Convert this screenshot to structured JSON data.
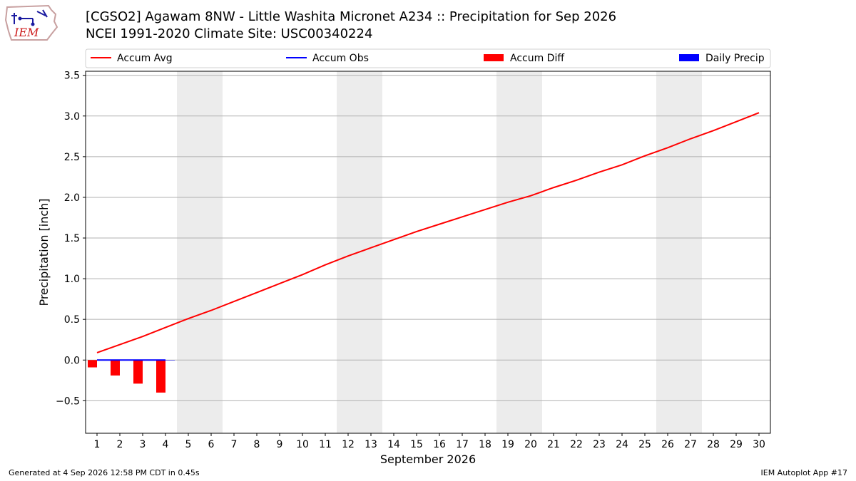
{
  "header": {
    "title_line1": "[CGSO2] Agawam 8NW - Little Washita Micronet A234 :: Precipitation for Sep 2026",
    "title_line2": "NCEI 1991-2020 Climate Site: USC00340224",
    "logo_text": "IEM"
  },
  "footer": {
    "generated": "Generated at 4 Sep 2026 12:58 PM CDT in 0.45s",
    "app": "IEM Autoplot App #17"
  },
  "colors": {
    "accum_avg": "#ff0000",
    "accum_obs": "#0000ff",
    "accum_diff": "#ff0000",
    "daily_precip": "#0000ff",
    "weekend_shade": "#ececec",
    "grid": "#b0b0b0"
  },
  "chart_data": {
    "type": "line",
    "xlabel": "September 2026",
    "ylabel": "Precipitation [inch]",
    "xlim": [
      0.5,
      30.5
    ],
    "ylim": [
      -0.9,
      3.55
    ],
    "x_ticks": [
      1,
      2,
      3,
      4,
      5,
      6,
      7,
      8,
      9,
      10,
      11,
      12,
      13,
      14,
      15,
      16,
      17,
      18,
      19,
      20,
      21,
      22,
      23,
      24,
      25,
      26,
      27,
      28,
      29,
      30
    ],
    "y_ticks": [
      -0.5,
      0.0,
      0.5,
      1.0,
      1.5,
      2.0,
      2.5,
      3.0,
      3.5
    ],
    "y_tick_labels": [
      "−0.5",
      "0.0",
      "0.5",
      "1.0",
      "1.5",
      "2.0",
      "2.5",
      "3.0",
      "3.5"
    ],
    "grid": "horizontal",
    "legend_position": "top",
    "shaded_days": [
      [
        5,
        6
      ],
      [
        12,
        13
      ],
      [
        19,
        20
      ],
      [
        26,
        27
      ]
    ],
    "legend": [
      {
        "label": "Accum Avg",
        "kind": "line",
        "color": "#ff0000"
      },
      {
        "label": "Accum Obs",
        "kind": "line",
        "color": "#0000ff"
      },
      {
        "label": "Accum Diff",
        "kind": "bar",
        "color": "#ff0000"
      },
      {
        "label": "Daily Precip",
        "kind": "bar",
        "color": "#0000ff"
      }
    ],
    "series": [
      {
        "name": "Accum Avg",
        "kind": "line",
        "color": "#ff0000",
        "x": [
          1,
          2,
          3,
          4,
          5,
          6,
          7,
          8,
          9,
          10,
          11,
          12,
          13,
          14,
          15,
          16,
          17,
          18,
          19,
          20,
          21,
          22,
          23,
          24,
          25,
          26,
          27,
          28,
          29,
          30
        ],
        "values": [
          0.09,
          0.19,
          0.29,
          0.4,
          0.51,
          0.61,
          0.72,
          0.83,
          0.94,
          1.05,
          1.17,
          1.28,
          1.38,
          1.48,
          1.58,
          1.67,
          1.76,
          1.85,
          1.94,
          2.02,
          2.12,
          2.21,
          2.31,
          2.4,
          2.51,
          2.61,
          2.72,
          2.82,
          2.93,
          3.04
        ]
      },
      {
        "name": "Accum Obs",
        "kind": "line",
        "color": "#0000ff",
        "x": [
          1,
          2,
          3,
          4
        ],
        "values": [
          0.0,
          0.0,
          0.0,
          0.0
        ]
      },
      {
        "name": "Accum Diff",
        "kind": "bar",
        "color": "#ff0000",
        "x": [
          1,
          2,
          3,
          4
        ],
        "values": [
          -0.09,
          -0.19,
          -0.29,
          -0.4
        ]
      },
      {
        "name": "Daily Precip",
        "kind": "bar",
        "color": "#0000ff",
        "x": [
          1,
          2,
          3,
          4
        ],
        "values": [
          0.0,
          0.0,
          0.0,
          0.0
        ]
      }
    ]
  }
}
